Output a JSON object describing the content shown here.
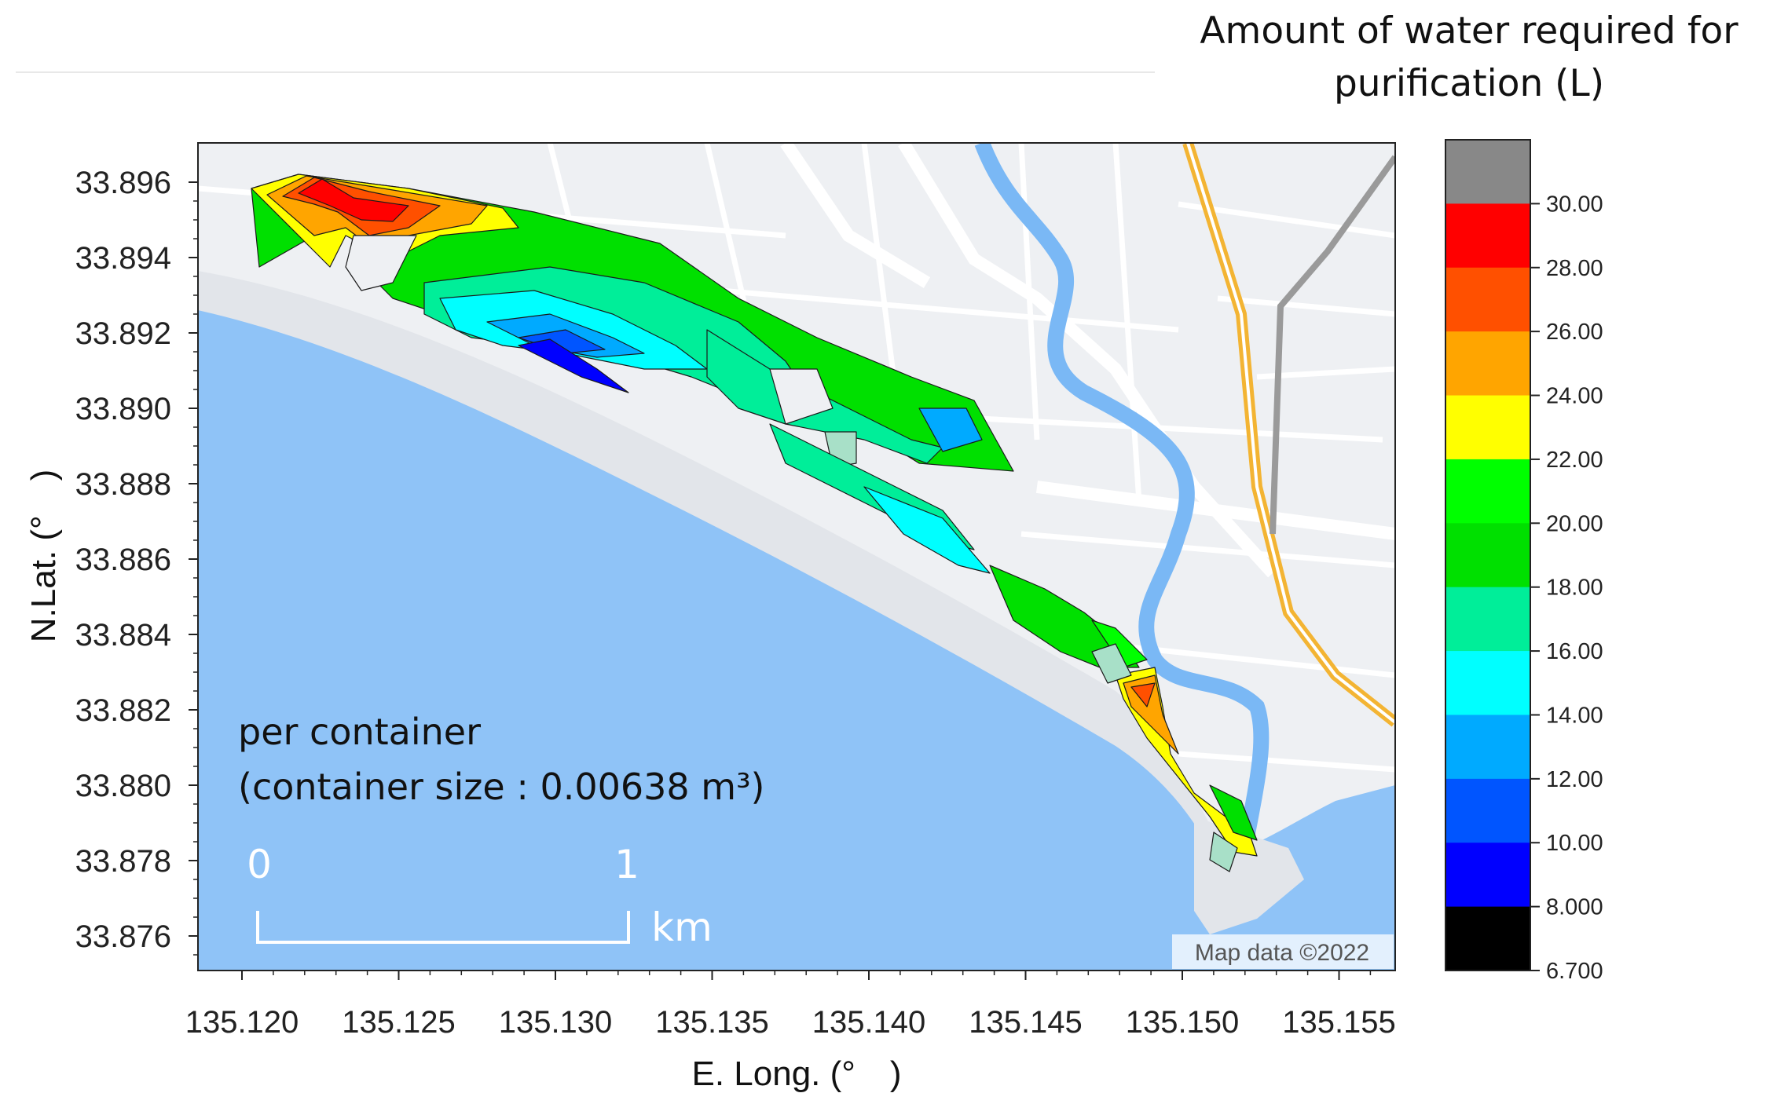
{
  "colorbar": {
    "title_line1": "Amount of water required for",
    "title_line2": "purification (L)",
    "labels": [
      "30.00",
      "28.00",
      "26.00",
      "24.00",
      "22.00",
      "20.00",
      "18.00",
      "16.00",
      "14.00",
      "12.00",
      "10.00",
      "8.000",
      "6.700"
    ],
    "colors_top_to_bottom": [
      "#888888",
      "#ff0000",
      "#ff5000",
      "#ffa500",
      "#ffff00",
      "#00ff00",
      "#00e000",
      "#00ee99",
      "#00ffff",
      "#00aaff",
      "#0055ff",
      "#0000ff",
      "#000000"
    ]
  },
  "axes": {
    "x_title": "E. Long. (°　)",
    "y_title": "N.Lat. (°　)",
    "x_ticks": [
      "135.120",
      "135.125",
      "135.130",
      "135.135",
      "135.140",
      "135.145",
      "135.150",
      "135.155"
    ],
    "y_ticks": [
      "33.896",
      "33.894",
      "33.892",
      "33.890",
      "33.888",
      "33.886",
      "33.884",
      "33.882",
      "33.880",
      "33.878",
      "33.876"
    ]
  },
  "annotation": {
    "line1": "per container",
    "line2": "(container size : 0.00638 m³)"
  },
  "scale_bar": {
    "start": "0",
    "end": "1",
    "unit": "km"
  },
  "map_credit": "Map data ©2022",
  "colors": {
    "sea": "#8fc3f7",
    "land": "#eef0f3",
    "road": "#ffffff",
    "river": "#7ab8f5",
    "highway": "#f3b433"
  }
}
